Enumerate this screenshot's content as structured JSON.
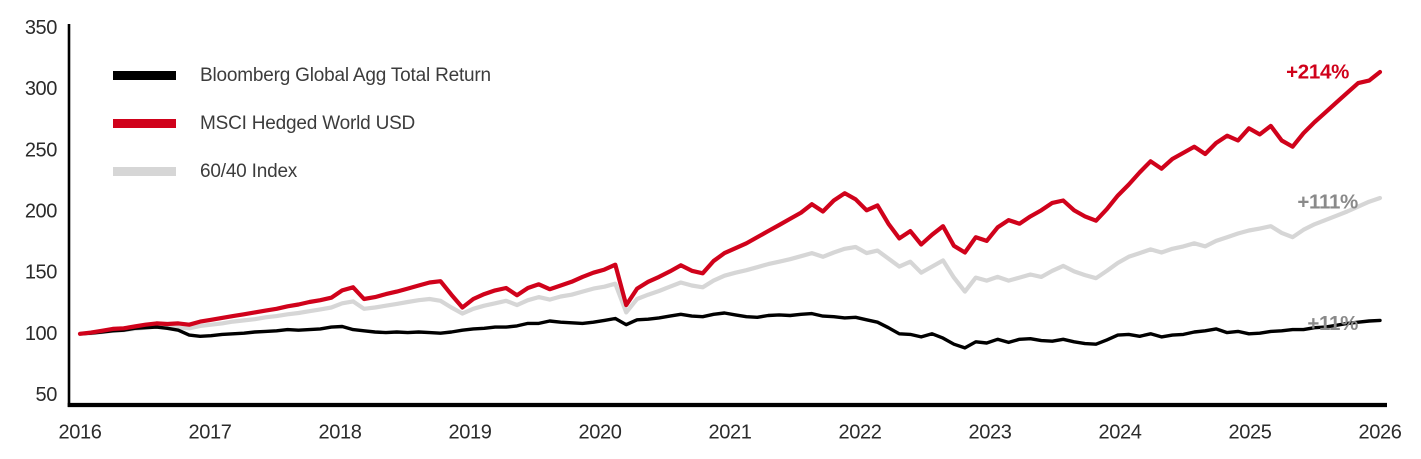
{
  "chart_data": {
    "type": "line",
    "title": "",
    "xlabel": "",
    "ylabel": "",
    "x_tick_labels": [
      "2016",
      "2017",
      "2018",
      "2019",
      "2020",
      "2021",
      "2022",
      "2023",
      "2024",
      "2025",
      "2026"
    ],
    "y_ticks": [
      350,
      300,
      250,
      200,
      150,
      100,
      50
    ],
    "ylim": [
      50,
      350
    ],
    "grid": false,
    "legend_position": "top-left",
    "axis_color": "#000000",
    "tick_label_color": "#2b2b2b",
    "x_unit": "monthly points from Jan 2016 to Dec 2025, base value 100",
    "draw_order": [
      2,
      0,
      1
    ],
    "series": [
      {
        "name": "Bloomberg Global Agg Total Return",
        "color": "#000000",
        "line_width": 3.4,
        "end_label": "+11%",
        "end_label_color": "#8a8a8a",
        "end_label_dx": -22,
        "end_label_dy": 3,
        "values": [
          100,
          100.5,
          101.5,
          102.5,
          103,
          104.5,
          105,
          105.5,
          104.5,
          103,
          99,
          98,
          98.5,
          99.5,
          100,
          100.5,
          101.5,
          102,
          102.5,
          103.5,
          103,
          103.5,
          104,
          105.5,
          106,
          103.5,
          102.5,
          101.5,
          101,
          101.5,
          101,
          101.5,
          101,
          100.5,
          101.5,
          103,
          104,
          104.5,
          105.5,
          105.5,
          106.5,
          108.5,
          108.5,
          110.5,
          109.5,
          109,
          108.5,
          109.5,
          111,
          112.5,
          107.5,
          111.5,
          112,
          113,
          114.5,
          116,
          114.5,
          114,
          116,
          117,
          115.5,
          114,
          113.5,
          115,
          115.5,
          115,
          116,
          116.5,
          114.5,
          114,
          113,
          113.5,
          111.5,
          109.5,
          105,
          100,
          99.5,
          97.5,
          100,
          96.5,
          91.5,
          88.5,
          93.5,
          92.5,
          95.5,
          93,
          95.5,
          96,
          94.5,
          94,
          95.5,
          93.5,
          92,
          91.5,
          95,
          99,
          99.5,
          98,
          100,
          97.5,
          99,
          99.5,
          101.5,
          102.5,
          104,
          101,
          102,
          100,
          100.5,
          102,
          102.5,
          103.5,
          103.5,
          105,
          105.5,
          107,
          108.5,
          109.5,
          110.5,
          111
        ]
      },
      {
        "name": "MSCI Hedged World USD",
        "color": "#d0021b",
        "line_width": 4.2,
        "end_label": "+214%",
        "end_label_color": "#d0021b",
        "end_label_dx": -31,
        "end_label_dy": 0,
        "values": [
          100,
          101,
          102.5,
          104,
          104.5,
          106,
          107.5,
          108.5,
          108,
          108.5,
          107.5,
          110,
          111.5,
          113,
          114.5,
          116,
          117.5,
          119,
          120.5,
          122.5,
          124,
          126,
          127.5,
          129.5,
          135.5,
          138,
          128.5,
          130,
          132.5,
          134.5,
          137,
          139.5,
          142,
          143,
          132,
          121.5,
          128.5,
          132.5,
          135.5,
          137.5,
          131.5,
          137.5,
          140.5,
          136.5,
          139.5,
          142.5,
          146.5,
          150,
          152.5,
          156.5,
          123.5,
          137,
          142.5,
          146.5,
          151,
          156,
          151.5,
          149.5,
          159.5,
          166,
          170,
          174,
          179,
          184,
          189,
          194,
          199,
          206,
          200,
          209,
          215,
          210,
          201,
          205,
          190,
          178,
          184,
          173,
          181,
          188,
          172,
          166.5,
          179,
          176,
          187,
          193,
          190,
          196,
          201,
          207,
          209,
          201,
          196,
          192.5,
          202,
          213,
          222,
          232,
          241,
          235,
          243,
          248,
          253,
          247,
          256,
          262,
          258,
          268,
          263,
          270,
          258,
          253,
          264,
          273,
          281,
          289,
          297,
          305,
          307,
          314
        ]
      },
      {
        "name": "60/40 Index",
        "color": "#d6d6d6",
        "line_width": 4.2,
        "end_label": "+111%",
        "end_label_color": "#8a8a8a",
        "end_label_dx": -22,
        "end_label_dy": 4,
        "values": [
          100,
          100.5,
          101.5,
          102.5,
          103,
          104,
          105,
          106,
          105.5,
          105,
          104.5,
          106.5,
          107.5,
          108.5,
          110,
          111,
          112,
          113.5,
          114.5,
          116,
          117,
          118.5,
          120,
          121.5,
          125,
          126.5,
          120.5,
          121.5,
          123,
          124.5,
          126,
          127.5,
          128.5,
          127,
          121.5,
          116.5,
          120.5,
          123,
          125,
          127,
          123.5,
          127.5,
          130,
          128,
          130.5,
          132,
          134.5,
          137,
          138.5,
          141,
          117.5,
          128.5,
          132,
          135,
          138.5,
          142,
          139.5,
          138,
          143.5,
          147.5,
          150,
          152,
          154.5,
          157,
          159,
          161,
          163.5,
          166,
          163,
          166.5,
          169.5,
          171,
          166,
          168,
          161.5,
          155,
          159,
          150,
          155,
          160,
          146,
          134.5,
          146,
          143.5,
          146.5,
          143.5,
          146,
          148.5,
          146.5,
          151.5,
          155.5,
          151,
          148,
          145.5,
          151.5,
          158,
          163,
          166,
          169,
          166.5,
          169.5,
          171.5,
          174,
          171.5,
          176,
          179,
          182,
          184.5,
          186,
          188,
          182.5,
          179,
          185,
          189.5,
          193,
          196.5,
          200,
          204,
          208,
          211
        ]
      }
    ]
  }
}
